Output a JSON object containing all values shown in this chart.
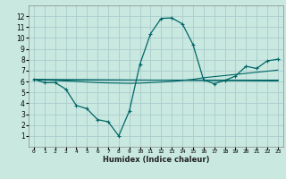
{
  "xlabel": "Humidex (Indice chaleur)",
  "bg_color": "#c8e8e0",
  "grid_color": "#aacccc",
  "line_color": "#006666",
  "xlim": [
    -0.5,
    23.5
  ],
  "ylim": [
    0,
    13
  ],
  "xticks": [
    0,
    1,
    2,
    3,
    4,
    5,
    6,
    7,
    8,
    9,
    10,
    11,
    12,
    13,
    14,
    15,
    16,
    17,
    18,
    19,
    20,
    21,
    22,
    23
  ],
  "yticks": [
    1,
    2,
    3,
    4,
    5,
    6,
    7,
    8,
    9,
    10,
    11,
    12
  ],
  "main_curve": {
    "x": [
      0,
      1,
      2,
      3,
      4,
      5,
      6,
      7,
      8,
      9,
      10,
      11,
      12,
      13,
      14,
      15,
      16,
      17,
      18,
      19,
      20,
      21,
      22,
      23
    ],
    "y": [
      6.2,
      5.9,
      5.9,
      5.3,
      3.8,
      3.5,
      2.5,
      2.3,
      1.0,
      3.3,
      7.6,
      10.4,
      11.8,
      11.85,
      11.3,
      9.4,
      6.15,
      5.8,
      6.1,
      6.5,
      7.4,
      7.2,
      7.9,
      8.05
    ]
  },
  "trend_line1": {
    "x": [
      0,
      1,
      2,
      3,
      4,
      5,
      6,
      7,
      8,
      9,
      10,
      11,
      12,
      13,
      14,
      15,
      16,
      17,
      18,
      19,
      20,
      21,
      22,
      23
    ],
    "y": [
      6.2,
      6.15,
      6.1,
      6.05,
      6.0,
      5.95,
      5.9,
      5.87,
      5.85,
      5.83,
      5.85,
      5.9,
      5.95,
      6.0,
      6.1,
      6.2,
      6.35,
      6.45,
      6.55,
      6.65,
      6.75,
      6.85,
      6.95,
      7.05
    ]
  },
  "flat_line1": {
    "x": [
      0,
      23
    ],
    "y": [
      6.2,
      6.05
    ]
  },
  "flat_line2": {
    "x": [
      0,
      23
    ],
    "y": [
      6.2,
      6.2
    ]
  }
}
